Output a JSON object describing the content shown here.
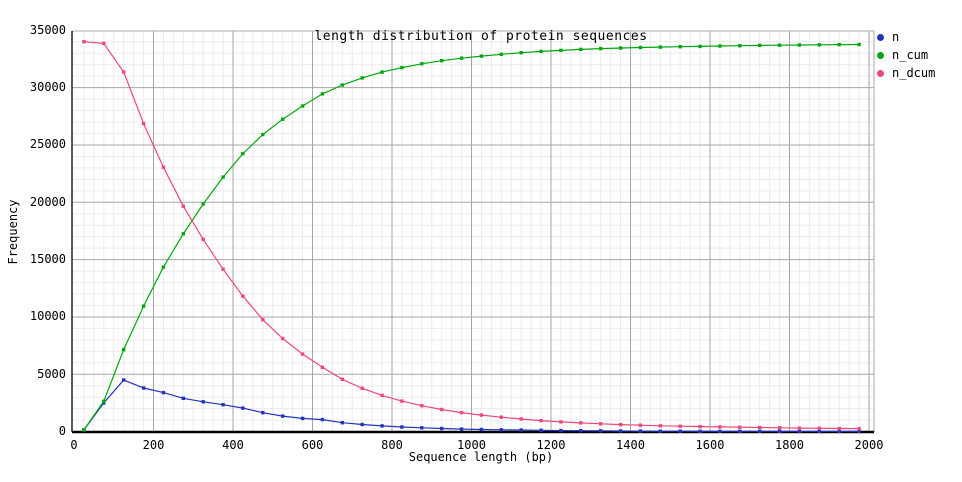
{
  "title": "length distribution of protein sequences",
  "axes": {
    "x": {
      "label": "Sequence length (bp)",
      "min": 0,
      "max": 2000,
      "major_step": 200,
      "minor_step": 25,
      "ticks": [
        0,
        200,
        400,
        600,
        800,
        1000,
        1200,
        1400,
        1600,
        1800,
        2000
      ]
    },
    "y": {
      "label": "Frequency",
      "min": 0,
      "max": 35000,
      "major_step": 5000,
      "minor_step": 1000,
      "ticks": [
        0,
        5000,
        10000,
        15000,
        20000,
        25000,
        30000,
        35000
      ]
    }
  },
  "legend": {
    "position": "top-right",
    "items": [
      {
        "label": "n",
        "color": "#2433bb"
      },
      {
        "label": "n_cum",
        "color": "#00a80e"
      },
      {
        "label": "n_dcum",
        "color": "#ee4879"
      }
    ]
  },
  "style_colors": {
    "background": "#ffffff",
    "grid_major": "#a6a6a6",
    "grid_minor": "#ececec",
    "border_dark": "#000000",
    "border_light": "#aaaaaa",
    "text": "#000000"
  },
  "chart_data": {
    "type": "line",
    "title": "length distribution of protein sequences",
    "xlabel": "Sequence length (bp)",
    "ylabel": "Frequency",
    "xlim": [
      0,
      2000
    ],
    "ylim": [
      0,
      35000
    ],
    "grid": "major+minor",
    "legend_position": "top-right",
    "marker": "square",
    "x": [
      25,
      75,
      125,
      175,
      225,
      275,
      325,
      375,
      425,
      475,
      525,
      575,
      625,
      675,
      725,
      775,
      825,
      875,
      925,
      975,
      1025,
      1075,
      1125,
      1175,
      1225,
      1275,
      1325,
      1375,
      1425,
      1475,
      1525,
      1575,
      1625,
      1675,
      1725,
      1775,
      1825,
      1875,
      1925,
      1975
    ],
    "series": [
      {
        "name": "n",
        "color": "#2433bb",
        "values": [
          150,
          2500,
          4500,
          3800,
          3400,
          2900,
          2600,
          2350,
          2050,
          1650,
          1350,
          1150,
          1050,
          780,
          620,
          500,
          400,
          330,
          270,
          220,
          180,
          160,
          140,
          110,
          90,
          80,
          70,
          55,
          45,
          38,
          32,
          30,
          30,
          26,
          24,
          22,
          18,
          16,
          14,
          10
        ]
      },
      {
        "name": "n_cum",
        "color": "#00a80e",
        "values": [
          150,
          2650,
          7150,
          10950,
          14350,
          17250,
          19850,
          22200,
          24250,
          25900,
          27250,
          28400,
          29450,
          30230,
          30850,
          31350,
          31750,
          32080,
          32350,
          32570,
          32750,
          32910,
          33050,
          33160,
          33250,
          33330,
          33400,
          33455,
          33500,
          33538,
          33570,
          33600,
          33630,
          33656,
          33680,
          33702,
          33720,
          33736,
          33750,
          33760
        ]
      },
      {
        "name": "n_dcum",
        "color": "#ee4879",
        "values": [
          34010,
          33860,
          31360,
          26860,
          23060,
          19660,
          16760,
          14160,
          11810,
          9760,
          8110,
          6760,
          5610,
          4560,
          3780,
          3160,
          2660,
          2260,
          1930,
          1660,
          1440,
          1260,
          1100,
          960,
          850,
          760,
          680,
          610,
          555,
          510,
          472,
          440,
          410,
          380,
          354,
          330,
          308,
          290,
          274,
          260
        ]
      }
    ]
  }
}
